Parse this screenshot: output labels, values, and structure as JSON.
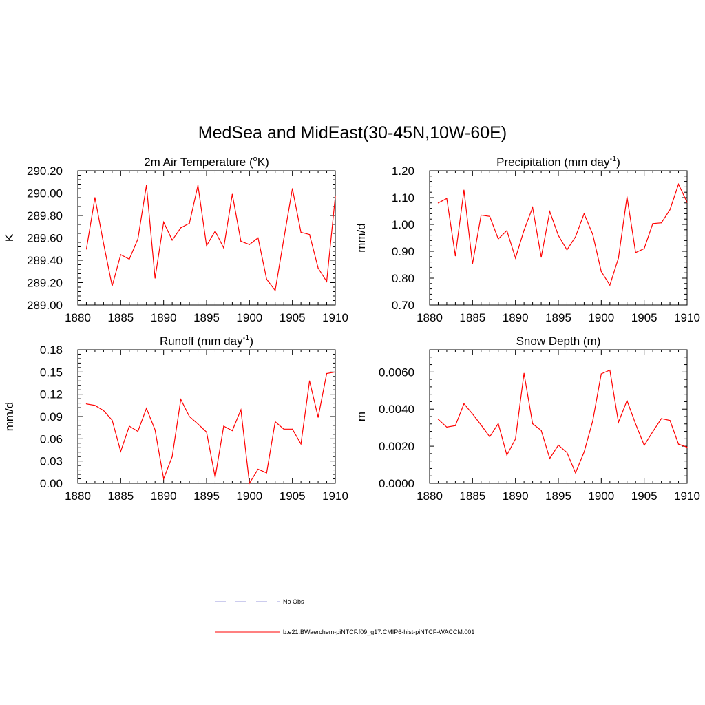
{
  "figure": {
    "title": "MedSea and MidEast(30-45N,10W-60E)"
  },
  "legend": {
    "obs_label": "No Obs",
    "obs_color": "#9999dd",
    "model_label": "b.e21.BWaerchem-piNTCF.f09_g17.CMIP6-hist-piNTCF-WACCM.001",
    "model_color": "#ff0000"
  },
  "chart_data": [
    {
      "type": "line",
      "title": "2m Air Temperature (",
      "title_sup": "o",
      "title_end": "K)",
      "ylabel": "K",
      "xlim": [
        1880,
        1910
      ],
      "ylim": [
        289.0,
        290.2
      ],
      "xticks": [
        1880,
        1885,
        1890,
        1895,
        1900,
        1905,
        1910
      ],
      "xtick_labels": [
        "1880",
        "1885",
        "1890",
        "1895",
        "1900",
        "1905",
        "1910"
      ],
      "yticks": [
        289.0,
        289.2,
        289.4,
        289.6,
        289.8,
        290.0,
        290.2
      ],
      "ytick_labels": [
        "289.00",
        "289.20",
        "289.40",
        "289.60",
        "289.80",
        "290.00",
        "290.20"
      ],
      "series": [
        {
          "color": "#ff0000",
          "x": [
            1881,
            1882,
            1883,
            1884,
            1885,
            1886,
            1887,
            1888,
            1889,
            1890,
            1891,
            1892,
            1893,
            1894,
            1895,
            1896,
            1897,
            1898,
            1899,
            1900,
            1901,
            1902,
            1903,
            1904,
            1905,
            1906,
            1907,
            1908,
            1909,
            1910
          ],
          "y": [
            289.5,
            289.96,
            289.55,
            289.17,
            289.45,
            289.41,
            289.59,
            290.07,
            289.24,
            289.74,
            289.58,
            289.69,
            289.73,
            290.07,
            289.53,
            289.66,
            289.51,
            289.99,
            289.57,
            289.54,
            289.6,
            289.23,
            289.13,
            289.59,
            290.04,
            289.65,
            289.63,
            289.33,
            289.21,
            289.97
          ]
        }
      ]
    },
    {
      "type": "line",
      "title": "Precipitation (mm day",
      "title_sup": "-1",
      "title_end": ")",
      "ylabel": "mm/d",
      "xlim": [
        1880,
        1910
      ],
      "ylim": [
        0.7,
        1.2
      ],
      "xticks": [
        1880,
        1885,
        1890,
        1895,
        1900,
        1905,
        1910
      ],
      "xtick_labels": [
        "1880",
        "1885",
        "1890",
        "1895",
        "1900",
        "1905",
        "1910"
      ],
      "yticks": [
        0.7,
        0.8,
        0.9,
        1.0,
        1.1,
        1.2
      ],
      "ytick_labels": [
        "0.70",
        "0.80",
        "0.90",
        "1.00",
        "1.10",
        "1.20"
      ],
      "series": [
        {
          "color": "#ff0000",
          "x": [
            1881,
            1882,
            1883,
            1884,
            1885,
            1886,
            1887,
            1888,
            1889,
            1890,
            1891,
            1892,
            1893,
            1894,
            1895,
            1896,
            1897,
            1898,
            1899,
            1900,
            1901,
            1902,
            1903,
            1904,
            1905,
            1906,
            1907,
            1908,
            1909,
            1910
          ],
          "y": [
            1.08,
            1.097,
            0.883,
            1.128,
            0.853,
            1.035,
            1.03,
            0.946,
            0.977,
            0.875,
            0.978,
            1.063,
            0.878,
            1.048,
            0.959,
            0.905,
            0.954,
            1.04,
            0.963,
            0.825,
            0.774,
            0.875,
            1.103,
            0.895,
            0.91,
            1.003,
            1.006,
            1.055,
            1.15,
            1.082
          ]
        }
      ]
    },
    {
      "type": "line",
      "title": "Runoff (mm day",
      "title_sup": "-1",
      "title_end": ")",
      "ylabel": "mm/d",
      "xlim": [
        1880,
        1910
      ],
      "ylim": [
        0.0,
        0.18
      ],
      "xticks": [
        1880,
        1885,
        1890,
        1895,
        1900,
        1905,
        1910
      ],
      "xtick_labels": [
        "1880",
        "1885",
        "1890",
        "1895",
        "1900",
        "1905",
        "1910"
      ],
      "yticks": [
        0.0,
        0.03,
        0.06,
        0.09,
        0.12,
        0.15,
        0.18
      ],
      "ytick_labels": [
        "0.00",
        "0.03",
        "0.06",
        "0.09",
        "0.12",
        "0.15",
        "0.18"
      ],
      "series": [
        {
          "color": "#ff0000",
          "x": [
            1881,
            1882,
            1883,
            1884,
            1885,
            1886,
            1887,
            1888,
            1889,
            1890,
            1891,
            1892,
            1893,
            1894,
            1895,
            1896,
            1897,
            1898,
            1899,
            1900,
            1901,
            1902,
            1903,
            1904,
            1905,
            1906,
            1907,
            1908,
            1909,
            1910
          ],
          "y": [
            0.107,
            0.105,
            0.098,
            0.085,
            0.043,
            0.077,
            0.07,
            0.101,
            0.072,
            0.006,
            0.036,
            0.113,
            0.09,
            0.08,
            0.069,
            0.008,
            0.077,
            0.071,
            0.099,
            0.0,
            0.019,
            0.014,
            0.083,
            0.073,
            0.073,
            0.053,
            0.138,
            0.089,
            0.148,
            0.15
          ]
        }
      ]
    },
    {
      "type": "line",
      "title": "Snow Depth (m)",
      "title_sup": "",
      "title_end": "",
      "ylabel": "m",
      "xlim": [
        1880,
        1910
      ],
      "ylim": [
        0.0,
        0.0072
      ],
      "xticks": [
        1880,
        1885,
        1890,
        1895,
        1900,
        1905,
        1910
      ],
      "xtick_labels": [
        "1880",
        "1885",
        "1890",
        "1895",
        "1900",
        "1905",
        "1910"
      ],
      "yticks": [
        0.0,
        0.002,
        0.004,
        0.006
      ],
      "ytick_labels": [
        "0.0000",
        "0.0020",
        "0.0040",
        "0.0060"
      ],
      "series": [
        {
          "color": "#ff0000",
          "x": [
            1881,
            1882,
            1883,
            1884,
            1885,
            1886,
            1887,
            1888,
            1889,
            1890,
            1891,
            1892,
            1893,
            1894,
            1895,
            1896,
            1897,
            1898,
            1899,
            1900,
            1901,
            1902,
            1903,
            1904,
            1905,
            1906,
            1907,
            1908,
            1909,
            1910
          ],
          "y": [
            0.00345,
            0.00303,
            0.00311,
            0.00429,
            0.00374,
            0.00314,
            0.00251,
            0.00322,
            0.00152,
            0.00239,
            0.00593,
            0.00321,
            0.00285,
            0.00134,
            0.00206,
            0.00166,
            0.00056,
            0.00169,
            0.00336,
            0.0059,
            0.0061,
            0.00329,
            0.00446,
            0.0032,
            0.00205,
            0.00278,
            0.00349,
            0.00339,
            0.00211,
            0.00195
          ]
        }
      ]
    }
  ]
}
